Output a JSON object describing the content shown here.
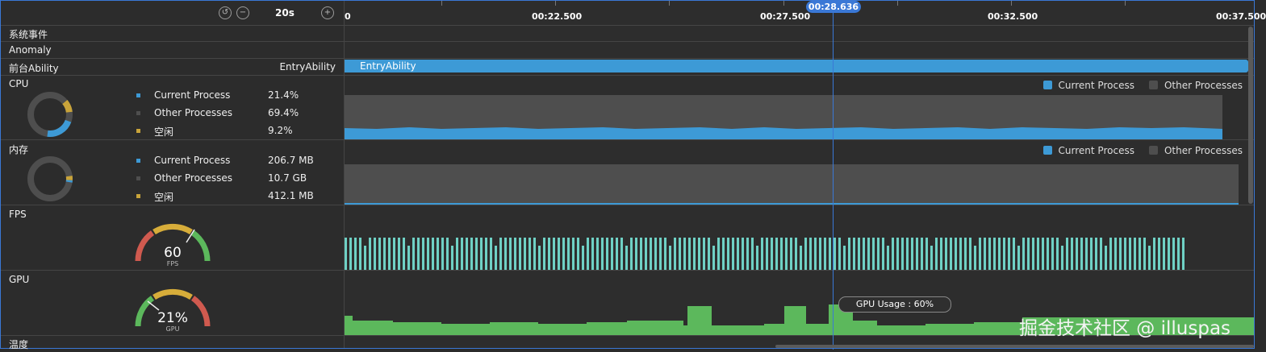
{
  "toolbar": {
    "zoom": "20s",
    "icons": [
      "reset-icon",
      "zoom-out-icon",
      "zoom-in-icon"
    ]
  },
  "ruler": {
    "ticks": [
      "0",
      "00:22.500",
      "00:27.500",
      "00:32.500",
      "00:37.500"
    ],
    "cursor_time": "00:28.636"
  },
  "rows": {
    "system_events": {
      "label": "系统事件"
    },
    "anomaly": {
      "label": "Anomaly"
    },
    "ability": {
      "label": "前台Ability",
      "value": "EntryAbility",
      "bar_label": "EntryAbility"
    },
    "cpu": {
      "label": "CPU",
      "legend": [
        {
          "name": "Current Process",
          "value": "21.4%",
          "color": "#3d9ad6"
        },
        {
          "name": "Other Processes",
          "value": "69.4%",
          "color": "#4e4e4e"
        },
        {
          "name": "空闲",
          "value": "9.2%",
          "color": "#c9a43a"
        }
      ],
      "track_legend": [
        "Current Process",
        "Other Processes"
      ]
    },
    "memory": {
      "label": "内存",
      "legend": [
        {
          "name": "Current Process",
          "value": "206.7 MB",
          "color": "#3d9ad6"
        },
        {
          "name": "Other Processes",
          "value": "10.7 GB",
          "color": "#4e4e4e"
        },
        {
          "name": "空闲",
          "value": "412.1 MB",
          "color": "#c9a43a"
        }
      ],
      "track_legend": [
        "Current Process",
        "Other Processes"
      ]
    },
    "fps": {
      "label": "FPS",
      "value": "60",
      "unit": "FPS"
    },
    "gpu": {
      "label": "GPU",
      "value": "21%",
      "unit": "GPU",
      "tooltip": "GPU Usage :   60%"
    },
    "temperature": {
      "label": "温度"
    }
  },
  "colors": {
    "accent": "#3a78d6",
    "cpu_current": "#3d9ad6",
    "other": "#4e4e4e",
    "fps_bar": "#6fd1c5",
    "gpu_area": "#5cb85c"
  },
  "watermark": "掘金技术社区 @ illuspas"
}
